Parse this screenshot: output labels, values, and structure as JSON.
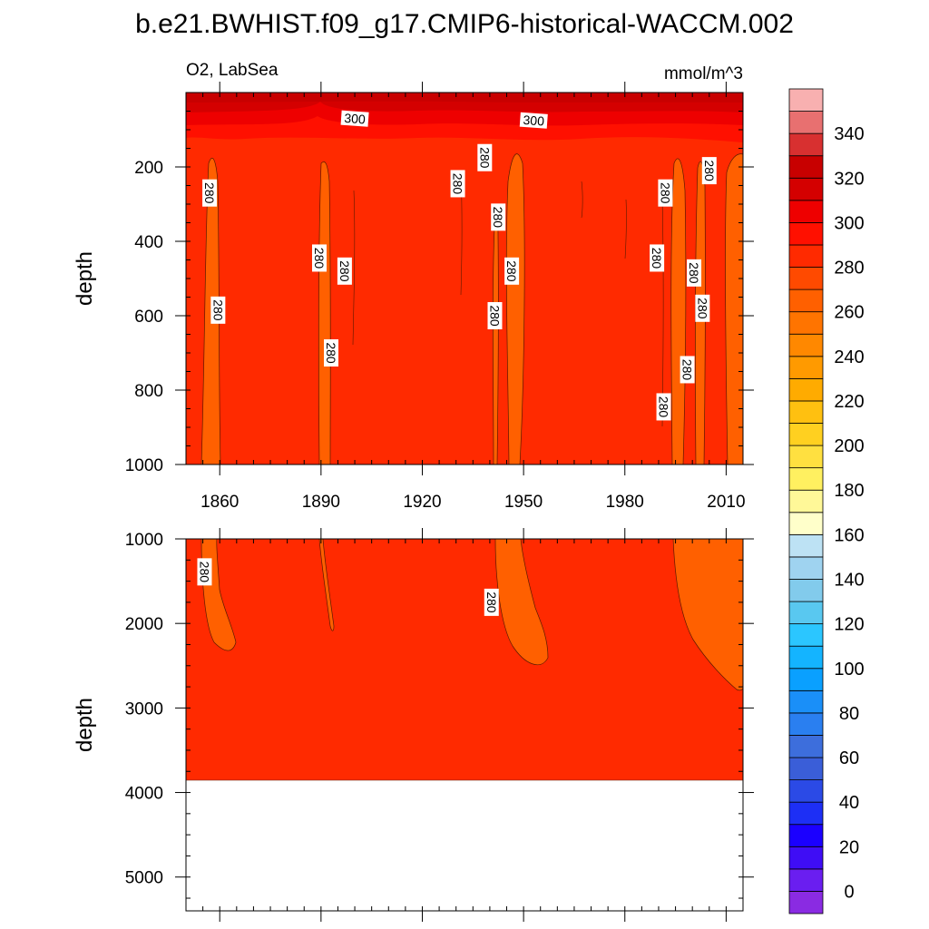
{
  "title": "b.e21.BWHIST.f09_g17.CMIP6-historical-WACCM.002",
  "chart_data": {
    "type": "heatmap",
    "variable_label": "O2, LabSea",
    "units_label": "mmol/m^3",
    "x_range": [
      1850,
      2015
    ],
    "x_ticks": [
      1860,
      1890,
      1920,
      1950,
      1980,
      2010
    ],
    "colorbar": {
      "min": -10,
      "max": 360,
      "step": 10,
      "tick_values": [
        0,
        20,
        40,
        60,
        80,
        100,
        120,
        140,
        160,
        180,
        200,
        220,
        240,
        260,
        280,
        300,
        320,
        340
      ],
      "tick_labels": [
        "0",
        "20",
        "40",
        "60",
        "80",
        "100",
        "120",
        "140",
        "160",
        "180",
        "200",
        "220",
        "240",
        "260",
        "280",
        "300",
        "320",
        "340"
      ],
      "colors": [
        "#8a2be2",
        "#6a1ef0",
        "#3f0df5",
        "#1b00ff",
        "#1d2ff5",
        "#2b4ae6",
        "#3a5ed8",
        "#3d6edc",
        "#2a7ff0",
        "#1a8ff8",
        "#0aa0ff",
        "#14b4ff",
        "#2bc6ff",
        "#59c8f0",
        "#82cbec",
        "#9fd3f0",
        "#bde2f4",
        "#ffffca",
        "#fff898",
        "#fff060",
        "#ffe040",
        "#ffd020",
        "#ffc010",
        "#ffab00",
        "#ff9a00",
        "#ff8800",
        "#ff7400",
        "#ff6000",
        "#ff4a00",
        "#ff2a00",
        "#ff1000",
        "#ee0000",
        "#d40000",
        "#c80000",
        "#d83030",
        "#e87070",
        "#f8b0b0"
      ]
    },
    "panels": [
      {
        "name": "upper",
        "ylabel": "depth",
        "y_range": [
          1000,
          0
        ],
        "y_ticks": [
          200,
          400,
          600,
          800,
          1000
        ],
        "x_ticks_labeled": true,
        "contour_labels": [
          {
            "x": 1857.0,
            "depth": 270,
            "text": "280"
          },
          {
            "x": 1859.5,
            "depth": 585,
            "text": "280"
          },
          {
            "x": 1889.5,
            "depth": 445,
            "text": "280"
          },
          {
            "x": 1893.0,
            "depth": 700,
            "text": "280"
          },
          {
            "x": 1897.0,
            "depth": 480,
            "text": "280"
          },
          {
            "x": 1900.0,
            "depth": 70,
            "text": "300"
          },
          {
            "x": 1930.5,
            "depth": 245,
            "text": "280"
          },
          {
            "x": 1938.5,
            "depth": 175,
            "text": "280"
          },
          {
            "x": 1941.5,
            "depth": 600,
            "text": "280"
          },
          {
            "x": 1942.5,
            "depth": 335,
            "text": "280"
          },
          {
            "x": 1946.5,
            "depth": 480,
            "text": "280"
          },
          {
            "x": 1953.0,
            "depth": 75,
            "text": "300"
          },
          {
            "x": 1989.5,
            "depth": 445,
            "text": "280"
          },
          {
            "x": 1991.5,
            "depth": 845,
            "text": "280"
          },
          {
            "x": 1992.0,
            "depth": 270,
            "text": "280"
          },
          {
            "x": 1998.5,
            "depth": 745,
            "text": "280"
          },
          {
            "x": 2000.5,
            "depth": 485,
            "text": "280"
          },
          {
            "x": 2003.0,
            "depth": 580,
            "text": "280"
          },
          {
            "x": 2005.0,
            "depth": 210,
            "text": "280"
          }
        ]
      },
      {
        "name": "lower",
        "ylabel": "depth",
        "y_range": [
          5400,
          1000
        ],
        "y_ticks": [
          1000,
          2000,
          3000,
          4000,
          5000
        ],
        "x_ticks_labeled": false,
        "seafloor_depth": 3860,
        "contour_labels": [
          {
            "x": 1855.5,
            "depth": 1390,
            "text": "280"
          },
          {
            "x": 1940.5,
            "depth": 1750,
            "text": "280"
          }
        ]
      }
    ]
  }
}
